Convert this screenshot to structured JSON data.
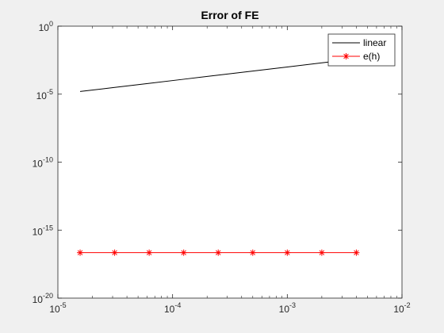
{
  "chart_data": {
    "type": "line",
    "title": "Error of FE",
    "xlabel": "",
    "ylabel": "",
    "xscale": "log",
    "yscale": "log",
    "xlim": [
      1e-05,
      0.01
    ],
    "ylim": [
      1e-20,
      1
    ],
    "x_ticks": [
      {
        "base": "10",
        "exp": "-5",
        "value": 1e-05
      },
      {
        "base": "10",
        "exp": "-4",
        "value": 0.0001
      },
      {
        "base": "10",
        "exp": "-3",
        "value": 0.001
      },
      {
        "base": "10",
        "exp": "-2",
        "value": 0.01
      }
    ],
    "y_ticks": [
      {
        "base": "10",
        "exp": "-20",
        "value": 1e-20
      },
      {
        "base": "10",
        "exp": "-15",
        "value": 1e-15
      },
      {
        "base": "10",
        "exp": "-10",
        "value": 1e-10
      },
      {
        "base": "10",
        "exp": "-5",
        "value": 1e-05
      },
      {
        "base": "10",
        "exp": "0",
        "value": 1
      }
    ],
    "grid": false,
    "legend_position": "top-right",
    "series": [
      {
        "name": "linear",
        "color": "#000000",
        "marker": "none",
        "x": [
          1.5625e-05,
          3.125e-05,
          6.25e-05,
          0.000125,
          0.00025,
          0.0005,
          0.001,
          0.002,
          0.004
        ],
        "y": [
          1.5625e-05,
          3.125e-05,
          6.25e-05,
          0.000125,
          0.00025,
          0.0005,
          0.001,
          0.002,
          0.004
        ]
      },
      {
        "name": "e(h)",
        "color": "#ff0000",
        "marker": "asterisk",
        "x": [
          1.5625e-05,
          3.125e-05,
          6.25e-05,
          0.000125,
          0.00025,
          0.0005,
          0.001,
          0.002,
          0.004
        ],
        "y": [
          2.2e-17,
          2.2e-17,
          2.2e-17,
          2.2e-17,
          2.2e-17,
          2.2e-17,
          2.2e-17,
          2.2e-17,
          2.2e-17
        ]
      }
    ]
  }
}
